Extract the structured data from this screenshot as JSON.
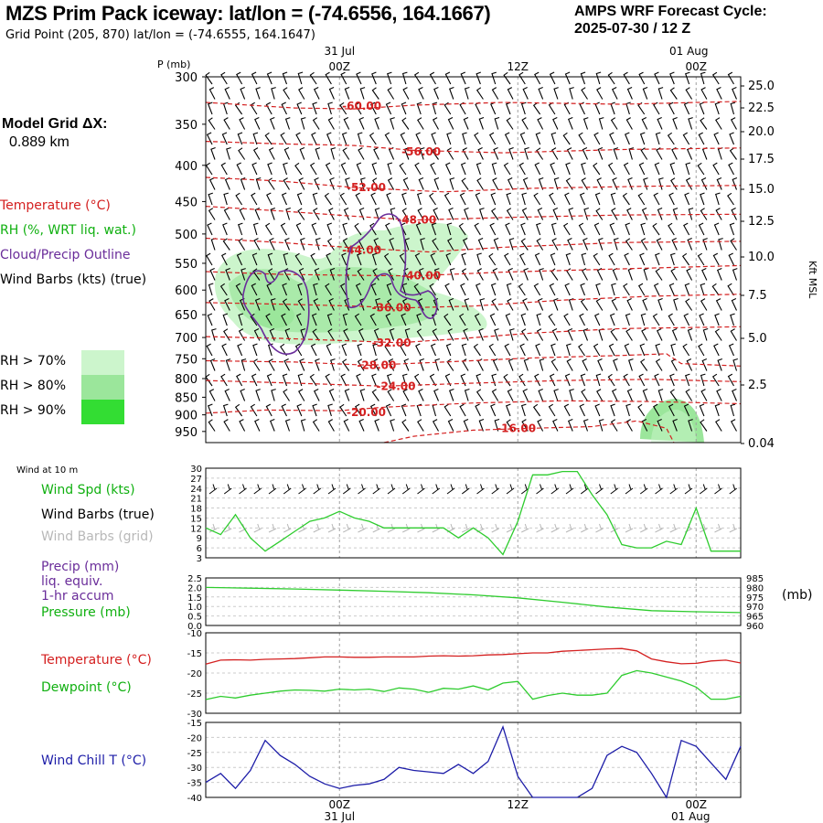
{
  "header": {
    "title": "MZS Prim Pack iceway:  lat/lon = (-74.6556, 164.1667)",
    "subtitle": "Grid Point (205, 870) lat/lon = (-74.6555, 164.1647)",
    "forecast_line1": "AMPS WRF Forecast Cycle:",
    "forecast_line2": "2025-07-30 / 12  Z"
  },
  "model_grid": {
    "line1": "Model Grid ΔX:",
    "line2": "0.889 km"
  },
  "legend": {
    "temperature": "Temperature (°C)",
    "rh": "RH (%, WRT liq. wat.)",
    "cloud": "Cloud/Precip Outline",
    "wind": "Wind Barbs (kts) (true)",
    "rh70": "RH > 70%",
    "rh80": "RH > 80%",
    "rh90": "RH > 90%"
  },
  "colors": {
    "temperature": "#d42020",
    "rh70": "#ccf5cc",
    "rh80": "#9be69b",
    "rh90": "#33dd33",
    "cloud": "#6a2d9a",
    "green_line": "#2ecc2e",
    "blue_line": "#1d1da8",
    "grid": "#a0a0a0"
  },
  "time_axis": {
    "top_dates": [
      "31 Jul",
      "01 Aug"
    ],
    "hours": [
      "00Z",
      "12Z",
      "00Z"
    ],
    "bottom_dates": [
      "31 Jul",
      "01 Aug"
    ],
    "range_hours": [
      0,
      36
    ],
    "ticks_hours": [
      9,
      21,
      33
    ]
  },
  "chart_data": [
    {
      "type": "line",
      "panel": "cross-section",
      "ylabel_left": "P (mb)",
      "ylabel_right": "Kft MSL",
      "pressure_ticks": [
        "300",
        "350",
        "400",
        "450",
        "500",
        "550",
        "600",
        "650",
        "700",
        "750",
        "800",
        "850",
        "900",
        "950"
      ],
      "height_ticks": [
        "25.0",
        "22.5",
        "20.0",
        "17.5",
        "15.0",
        "12.5",
        "10.0",
        "7.5",
        "5.0",
        "2.5",
        "0.04"
      ],
      "ylim": [
        300,
        985
      ],
      "temperature_labels": [
        "-60.00",
        "-56.00",
        "-52.00",
        "-48.00",
        "-44.00",
        "-40.00",
        "-36.00",
        "-32.00",
        "-28.00",
        "-24.00",
        "-20.00",
        "-16.00"
      ],
      "temperature_contours": [
        {
          "label": "-60.00",
          "label_x": 10.5,
          "label_p": 330,
          "points": [
            [
              0,
              326
            ],
            [
              6,
              332
            ],
            [
              10,
              333
            ],
            [
              14,
              329
            ],
            [
              20,
              326
            ],
            [
              28,
              328
            ],
            [
              36,
              325
            ]
          ]
        },
        {
          "label": "-56.00",
          "label_x": 14.5,
          "label_p": 383,
          "points": [
            [
              0,
              370
            ],
            [
              5,
              373
            ],
            [
              10,
              375
            ],
            [
              14,
              381
            ],
            [
              20,
              384
            ],
            [
              28,
              380
            ],
            [
              36,
              378
            ]
          ]
        },
        {
          "label": "-52.00",
          "label_x": 10.8,
          "label_p": 430,
          "points": [
            [
              0,
              416
            ],
            [
              5,
              421
            ],
            [
              10,
              430
            ],
            [
              16,
              436
            ],
            [
              22,
              431
            ],
            [
              30,
              428
            ],
            [
              36,
              427
            ]
          ]
        },
        {
          "label": "-48.00",
          "label_x": 14.2,
          "label_p": 478,
          "points": [
            [
              0,
              457
            ],
            [
              5,
              464
            ],
            [
              10,
              472
            ],
            [
              14,
              478
            ],
            [
              20,
              474
            ],
            [
              28,
              470
            ],
            [
              36,
              469
            ]
          ]
        },
        {
          "label": "-44.00",
          "label_x": 10.5,
          "label_p": 527,
          "points": [
            [
              0,
              507
            ],
            [
              5,
              514
            ],
            [
              10,
              523
            ],
            [
              15,
              530
            ],
            [
              20,
              522
            ],
            [
              28,
              514
            ],
            [
              36,
              512
            ]
          ]
        },
        {
          "label": "-40.00",
          "label_x": 14.5,
          "label_p": 573,
          "points": [
            [
              0,
              565
            ],
            [
              5,
              570
            ],
            [
              10,
              572
            ],
            [
              14,
              573
            ],
            [
              20,
              566
            ],
            [
              28,
              560
            ],
            [
              36,
              554
            ]
          ]
        },
        {
          "label": "-36.00",
          "label_x": 12.5,
          "label_p": 635,
          "points": [
            [
              0,
              625
            ],
            [
              5,
              628
            ],
            [
              10,
              632
            ],
            [
              13,
              636
            ],
            [
              18,
              632
            ],
            [
              24,
              620
            ],
            [
              30,
              612
            ],
            [
              36,
              608
            ]
          ]
        },
        {
          "label": "-32.00",
          "label_x": 12.5,
          "label_p": 712,
          "points": [
            [
              0,
              698
            ],
            [
              5,
              702
            ],
            [
              10,
              708
            ],
            [
              13,
              712
            ],
            [
              17,
              703
            ],
            [
              22,
              690
            ],
            [
              28,
              680
            ],
            [
              36,
              676
            ]
          ]
        },
        {
          "label": "-28.00",
          "label_x": 11.5,
          "label_p": 766,
          "points": [
            [
              0,
              755
            ],
            [
              6,
              758
            ],
            [
              11,
              766
            ],
            [
              16,
              758
            ],
            [
              22,
              748
            ],
            [
              28,
              742
            ],
            [
              31,
              738
            ],
            [
              32,
              762
            ],
            [
              36,
              768
            ]
          ]
        },
        {
          "label": "-24.00",
          "label_x": 12.8,
          "label_p": 820,
          "points": [
            [
              0,
              805
            ],
            [
              6,
              812
            ],
            [
              12,
              820
            ],
            [
              18,
              812
            ],
            [
              24,
              805
            ],
            [
              30,
              802
            ],
            [
              36,
              808
            ]
          ]
        },
        {
          "label": "-20.00",
          "label_x": 10.8,
          "label_p": 893,
          "points": [
            [
              0,
              895
            ],
            [
              4,
              886
            ],
            [
              9,
              888
            ],
            [
              12,
              878
            ],
            [
              18,
              866
            ],
            [
              24,
              860
            ],
            [
              30,
              862
            ],
            [
              36,
              868
            ]
          ]
        },
        {
          "label": "-16.00",
          "label_x": 20.9,
          "label_p": 941,
          "points": [
            [
              12,
              985
            ],
            [
              14,
              965
            ],
            [
              18,
              946
            ],
            [
              22,
              940
            ],
            [
              26,
              935
            ],
            [
              29,
              918
            ],
            [
              31,
              940
            ],
            [
              31.5,
              985
            ]
          ]
        }
      ]
    },
    {
      "type": "line",
      "panel": "wind",
      "title": "Wind at 10 m",
      "labels": [
        "Wind Spd (kts)",
        "Wind Barbs (true)",
        "Wind Barbs (grid)"
      ],
      "yticks": [
        "30",
        "27",
        "24",
        "21",
        "18",
        "15",
        "12",
        "9",
        "6",
        "3"
      ],
      "ylim": [
        3,
        30
      ],
      "x": [
        0,
        1,
        2,
        3,
        4,
        5,
        6,
        7,
        8,
        9,
        10,
        11,
        12,
        13,
        14,
        15,
        16,
        17,
        18,
        19,
        20,
        21,
        22,
        23,
        24,
        25,
        26,
        27,
        28,
        29,
        30,
        31,
        32,
        33,
        34,
        35,
        36
      ],
      "series": [
        {
          "name": "Wind Spd (kts)",
          "values": [
            12,
            10,
            16,
            9,
            5,
            8,
            11,
            14,
            15,
            17,
            15,
            14,
            12,
            12,
            12,
            12,
            12,
            9,
            12,
            9,
            4,
            14,
            28,
            28,
            29,
            29,
            22,
            16,
            7,
            6,
            6,
            8,
            7,
            18,
            5,
            5,
            5
          ]
        }
      ]
    },
    {
      "type": "line",
      "panel": "pressure",
      "labels": [
        "Precip (mm)",
        "liq. equiv.",
        "1-hr accum",
        "Pressure (mb)"
      ],
      "ylabel_right": "(mb)",
      "yticks_left": [
        "2.5",
        "2.0",
        "1.5",
        "1.0",
        "0.5",
        "0.0"
      ],
      "yticks_right": [
        "985",
        "980",
        "975",
        "970",
        "965",
        "960"
      ],
      "ylim_left": [
        0,
        2.5
      ],
      "ylim_right": [
        960,
        985
      ],
      "x": [
        0,
        3,
        6,
        9,
        12,
        15,
        18,
        21,
        24,
        27,
        30,
        33,
        36
      ],
      "series": [
        {
          "name": "Pressure (mb)",
          "values": [
            980.0,
            979.6,
            979.2,
            978.6,
            978.0,
            977.2,
            976.1,
            974.5,
            972.2,
            969.7,
            967.8,
            967.2,
            966.8
          ]
        }
      ]
    },
    {
      "type": "line",
      "panel": "temperature",
      "labels": [
        "Temperature (°C)",
        "Dewpoint (°C)"
      ],
      "yticks": [
        "-10",
        "-15",
        "-20",
        "-25",
        "-30"
      ],
      "ylim": [
        -30,
        -10
      ],
      "x": [
        0,
        1,
        2,
        3,
        4,
        5,
        6,
        7,
        8,
        9,
        10,
        11,
        12,
        13,
        14,
        15,
        16,
        17,
        18,
        19,
        20,
        21,
        22,
        23,
        24,
        25,
        26,
        27,
        28,
        29,
        30,
        31,
        32,
        33,
        34,
        35,
        36
      ],
      "series": [
        {
          "name": "Temperature (°C)",
          "values": [
            -17.8,
            -16.8,
            -16.7,
            -16.8,
            -16.6,
            -16.5,
            -16.4,
            -16.2,
            -16.0,
            -16.0,
            -16.1,
            -16.1,
            -16.0,
            -16.0,
            -16.0,
            -15.8,
            -15.7,
            -15.8,
            -15.7,
            -15.5,
            -15.4,
            -15.2,
            -15.0,
            -15.0,
            -14.6,
            -14.4,
            -14.2,
            -14.0,
            -13.9,
            -14.5,
            -16.5,
            -17.2,
            -17.7,
            -17.6,
            -17.0,
            -16.8,
            -17.5
          ]
        },
        {
          "name": "Dewpoint (°C)",
          "values": [
            -26.6,
            -25.8,
            -26.2,
            -25.5,
            -25.0,
            -24.5,
            -24.2,
            -24.3,
            -24.5,
            -24.0,
            -24.2,
            -24.0,
            -24.6,
            -23.7,
            -24.0,
            -24.8,
            -23.8,
            -24.0,
            -23.2,
            -24.2,
            -22.5,
            -22.1,
            -26.5,
            -25.6,
            -25.0,
            -25.5,
            -25.5,
            -25.0,
            -20.6,
            -19.4,
            -20.0,
            -21.0,
            -22.0,
            -23.5,
            -26.5,
            -26.5,
            -25.8
          ]
        }
      ]
    },
    {
      "type": "line",
      "panel": "windchill",
      "labels": [
        "Wind Chill T (°C)"
      ],
      "yticks": [
        "-15",
        "-20",
        "-25",
        "-30",
        "-35",
        "-40"
      ],
      "ylim": [
        -40,
        -15
      ],
      "x": [
        0,
        1,
        2,
        3,
        4,
        5,
        6,
        7,
        8,
        9,
        10,
        11,
        12,
        13,
        14,
        15,
        16,
        17,
        18,
        19,
        20,
        21,
        22,
        23,
        24,
        25,
        26,
        27,
        28,
        29,
        30,
        31,
        32,
        33,
        34,
        35,
        36
      ],
      "series": [
        {
          "name": "Wind Chill T (°C)",
          "values": [
            -35.0,
            -32.0,
            -37.0,
            -31.0,
            -21.0,
            -26.0,
            -29.0,
            -33.0,
            -35.5,
            -37.0,
            -36.0,
            -35.5,
            -34.0,
            -30.0,
            -31.0,
            -31.5,
            -32.0,
            -29.0,
            -32.0,
            -28.0,
            -16.5,
            -33.0,
            -40.0,
            -40.0,
            -40.0,
            -40.0,
            -37.0,
            -26.0,
            -23.0,
            -25.0,
            -32.0,
            -40.0,
            -21.0,
            -23.0,
            -28.5,
            -34.0,
            -23.0
          ]
        }
      ]
    }
  ]
}
